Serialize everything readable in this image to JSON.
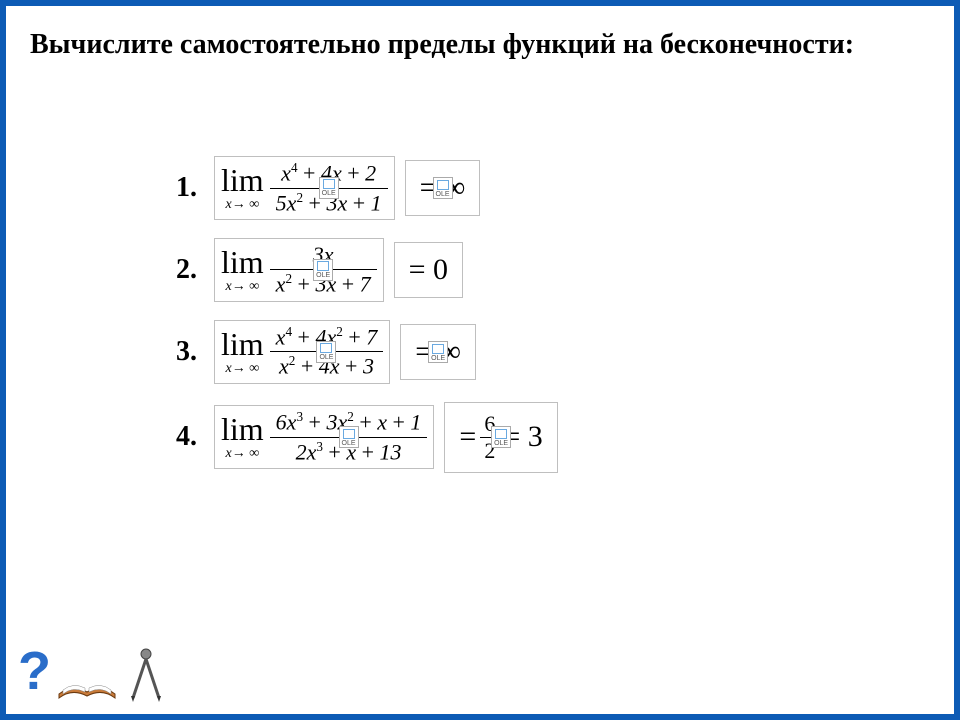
{
  "colors": {
    "border": "#0d5bb5",
    "equation_border": "#bfbfbf",
    "text": "#000000",
    "background": "#ffffff",
    "qmark": "#2a6dc9"
  },
  "title": "Вычислите самостоятельно пределы функций на бесконечности:",
  "title_fontsize": 28,
  "title_fontweight": "bold",
  "lim_fontsize": 32,
  "sub_fontsize": 14,
  "frac_fontsize": 22,
  "answer_fontsize": 30,
  "ole_label": "OLE",
  "problems": [
    {
      "index": "1.",
      "limit_sub": "x→ ∞",
      "numerator_html": "<i>x</i><span class='sup'>4</span> <span class='upright'>+</span> 4<i>x</i> <span class='upright'>+</span> 2",
      "denominator_html": "5<i>x</i><span class='sup'>2</span> <span class='upright'>+</span> 3<i>x</i> <span class='upright'>+</span> 1",
      "answer_html": "= ∞",
      "answer_has_ole": true
    },
    {
      "index": "2.",
      "limit_sub": "x→ ∞",
      "numerator_html": "3<i>x</i>",
      "denominator_html": "<i>x</i><span class='sup'>2</span> <span class='upright'>+</span> 3<i>x</i> <span class='upright'>+</span> 7",
      "answer_html": "= 0",
      "answer_has_ole": false
    },
    {
      "index": "3.",
      "limit_sub": "x→ ∞",
      "numerator_html": "<i>x</i><span class='sup'>4</span> <span class='upright'>+</span> 4<i>x</i><span class='sup'>2</span> <span class='upright'>+</span> 7",
      "denominator_html": "<i>x</i><span class='sup'>2</span> <span class='upright'>+</span> 4<i>x</i> <span class='upright'>+</span> 3",
      "answer_html": "= ∞",
      "answer_has_ole": true
    },
    {
      "index": "4.",
      "limit_sub": "x→ ∞",
      "numerator_html": "6<i>x</i><span class='sup'>3</span> <span class='upright'>+</span> 3<i>x</i><span class='sup'>2</span> <span class='upright'>+</span> <i>x</i> <span class='upright'>+</span> 1",
      "denominator_html": "2<i>x</i><span class='sup'>3</span> <span class='upright'>+</span> <i>x</i> <span class='upright'>+</span> 13",
      "answer_html": "= <span class='small-frac'><span class='t'>6</span><span class='br'></span><span class='b'>2</span></span> = 3",
      "answer_has_ole": true
    }
  ]
}
